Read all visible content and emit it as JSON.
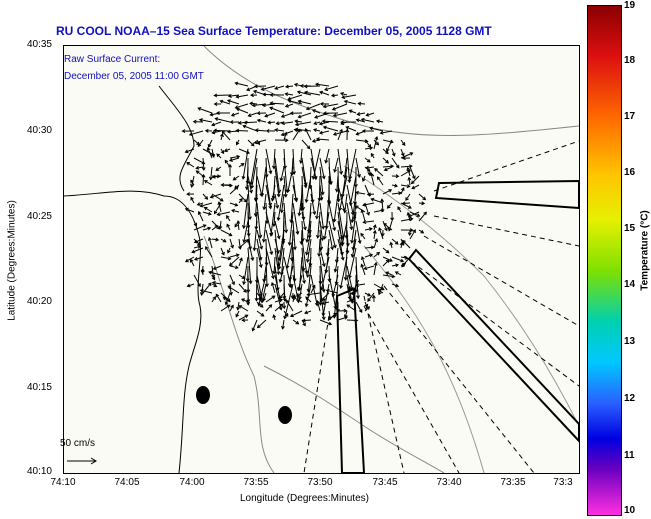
{
  "title": "RU COOL   NOAA–15  Sea Surface Temperature:  December 05, 2005 1128 GMT",
  "overlay": {
    "line1": "Raw Surface Current:",
    "line2": "December 05, 2005 11:00 GMT"
  },
  "axes": {
    "ylabel": "Latitude (Degrees:Minutes)",
    "xlabel": "Longitude (Degrees:Minutes)",
    "yticks": [
      "40:35",
      "40:30",
      "40:25",
      "40:20",
      "40:15",
      "40:10"
    ],
    "xticks": [
      "74:10",
      "74:05",
      "74:00",
      "73:55",
      "73:50",
      "73:45",
      "73:40",
      "73:35",
      "73:3"
    ]
  },
  "scale_label": "50 cm/s",
  "colorbar": {
    "label": "Temperature (°C)",
    "ticks": [
      "19",
      "18",
      "17",
      "16",
      "15",
      "14",
      "13",
      "12",
      "11",
      "10"
    ]
  }
}
